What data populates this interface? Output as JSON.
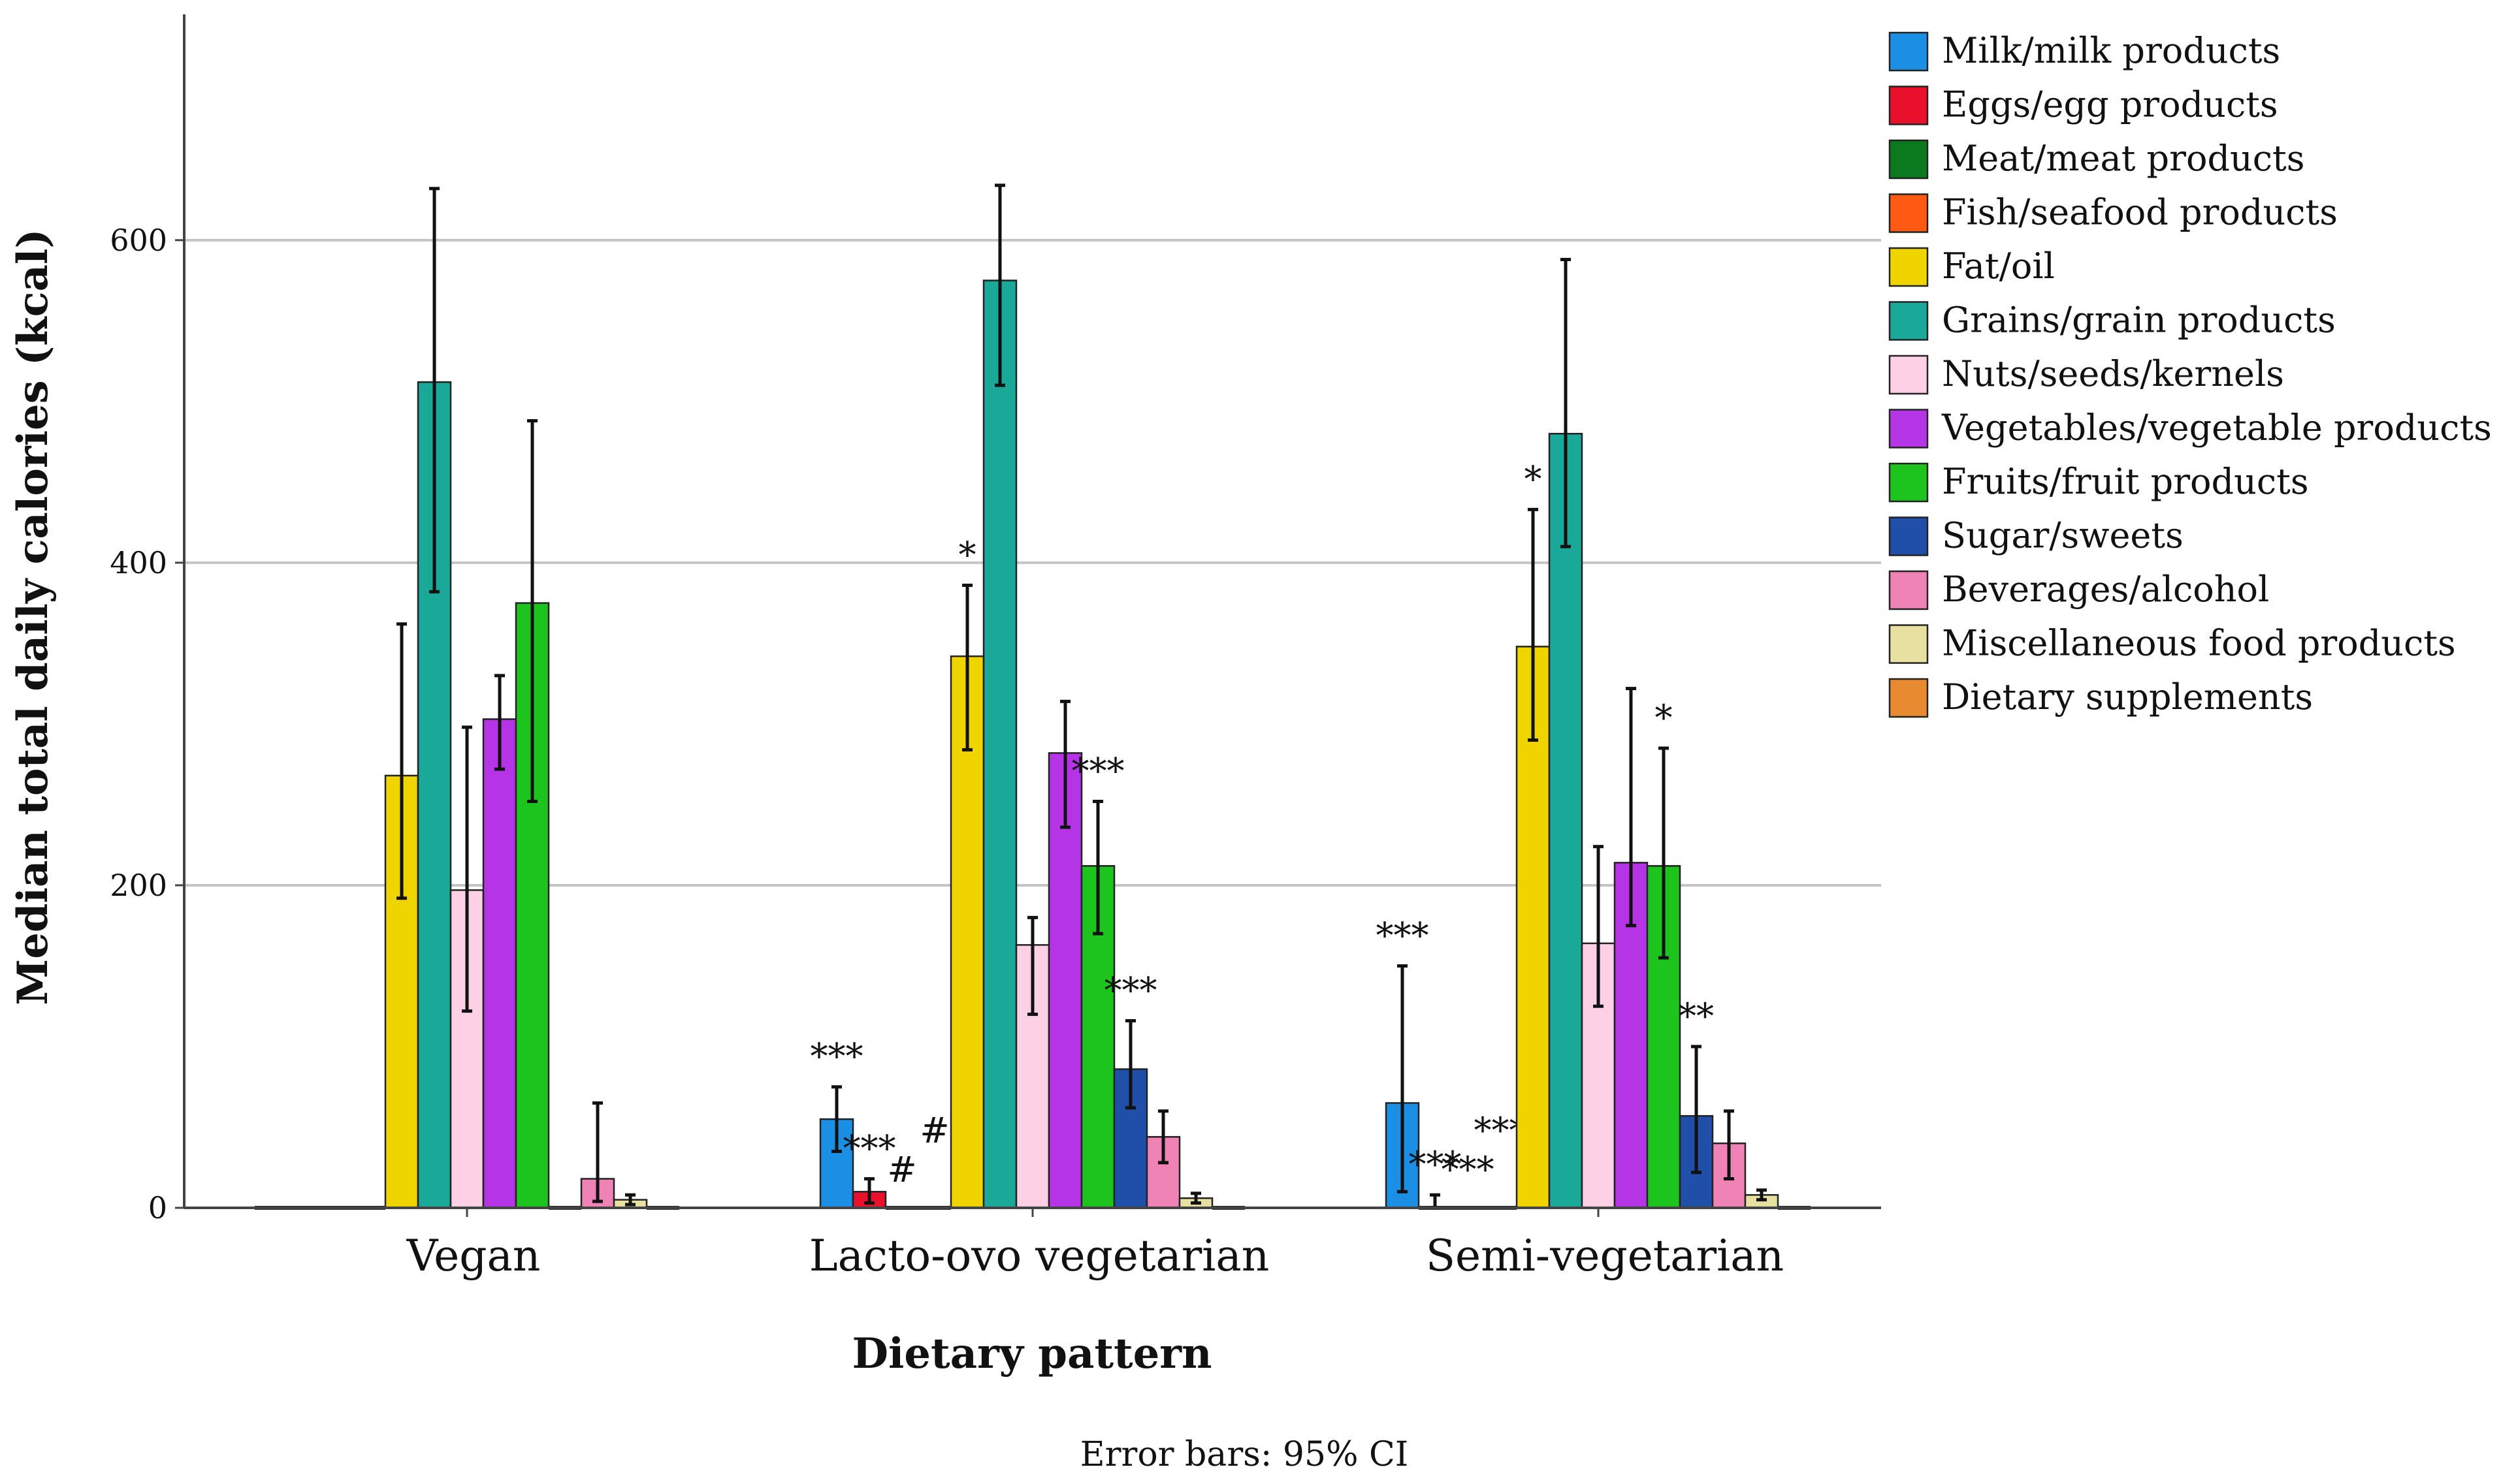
{
  "chart_data": {
    "type": "bar",
    "title": "",
    "xlabel": "Dietary pattern",
    "ylabel": "Median total daily calories (kcal)",
    "ylim": [
      0,
      740
    ],
    "yticks": [
      0,
      200,
      400,
      600
    ],
    "grid": true,
    "legend_position": "right",
    "note": "Error bars: 95% CI",
    "categories": [
      "Vegan",
      "Lacto-ovo vegetarian",
      "Semi-vegetarian"
    ],
    "series": [
      {
        "name": "Milk/milk products",
        "color": "#1a8fe3",
        "values": [
          0,
          55,
          65
        ],
        "ci_low": [
          0,
          35,
          10
        ],
        "ci_high": [
          0,
          75,
          150
        ],
        "annotations": [
          "",
          "***",
          "***"
        ]
      },
      {
        "name": "Eggs/egg products",
        "color": "#e8102a",
        "values": [
          0,
          10,
          0
        ],
        "ci_low": [
          0,
          3,
          0
        ],
        "ci_high": [
          0,
          18,
          8
        ],
        "annotations": [
          "",
          "***",
          "***"
        ]
      },
      {
        "name": "Meat/meat products",
        "color": "#0b7a1e",
        "values": [
          0,
          0,
          0
        ],
        "ci_low": [
          0,
          0,
          0
        ],
        "ci_high": [
          0,
          0,
          0
        ],
        "annotations": [
          "",
          "#",
          "***"
        ]
      },
      {
        "name": "Fish/seafood products",
        "color": "#ff5a14",
        "values": [
          0,
          0,
          0
        ],
        "ci_low": [
          0,
          0,
          0
        ],
        "ci_high": [
          0,
          0,
          0
        ],
        "annotations": [
          "",
          "#",
          "***"
        ]
      },
      {
        "name": "Fat/oil",
        "color": "#f0d400",
        "values": [
          268,
          342,
          348
        ],
        "ci_low": [
          192,
          284,
          290
        ],
        "ci_high": [
          362,
          386,
          433
        ],
        "annotations": [
          "",
          "*",
          "*"
        ]
      },
      {
        "name": "Grains/grain products",
        "color": "#1aa898",
        "values": [
          512,
          575,
          480
        ],
        "ci_low": [
          382,
          510,
          410
        ],
        "ci_high": [
          632,
          634,
          588
        ],
        "annotations": [
          "",
          "",
          ""
        ]
      },
      {
        "name": "Nuts/seeds/kernels",
        "color": "#fdd0e6",
        "values": [
          197,
          163,
          164
        ],
        "ci_low": [
          122,
          120,
          125
        ],
        "ci_high": [
          298,
          180,
          224
        ],
        "annotations": [
          "",
          "",
          ""
        ]
      },
      {
        "name": "Vegetables/vegetable products",
        "color": "#b535e6",
        "values": [
          303,
          282,
          214
        ],
        "ci_low": [
          272,
          236,
          175
        ],
        "ci_high": [
          330,
          314,
          322
        ],
        "annotations": [
          "",
          "",
          ""
        ]
      },
      {
        "name": "Fruits/fruit products",
        "color": "#1ec41e",
        "values": [
          375,
          212,
          212
        ],
        "ci_low": [
          252,
          170,
          155
        ],
        "ci_high": [
          488,
          252,
          285
        ],
        "annotations": [
          "",
          "***",
          "*"
        ]
      },
      {
        "name": "Sugar/sweets",
        "color": "#1f4fa8",
        "values": [
          0,
          86,
          57
        ],
        "ci_low": [
          0,
          62,
          22
        ],
        "ci_high": [
          0,
          116,
          100
        ],
        "annotations": [
          "",
          "***",
          "**"
        ]
      },
      {
        "name": "Beverages/alcohol",
        "color": "#f083b5",
        "values": [
          18,
          44,
          40
        ],
        "ci_low": [
          4,
          28,
          18
        ],
        "ci_high": [
          65,
          60,
          60
        ],
        "annotations": [
          "",
          "",
          ""
        ]
      },
      {
        "name": "Miscellaneous food products",
        "color": "#e8e0a0",
        "values": [
          5,
          6,
          8
        ],
        "ci_low": [
          2,
          3,
          5
        ],
        "ci_high": [
          8,
          9,
          11
        ],
        "annotations": [
          "",
          "",
          ""
        ]
      },
      {
        "name": "Dietary supplements",
        "color": "#e88a30",
        "values": [
          0,
          0,
          0
        ],
        "ci_low": [
          0,
          0,
          0
        ],
        "ci_high": [
          0,
          0,
          0
        ],
        "annotations": [
          "",
          "",
          ""
        ]
      }
    ]
  }
}
